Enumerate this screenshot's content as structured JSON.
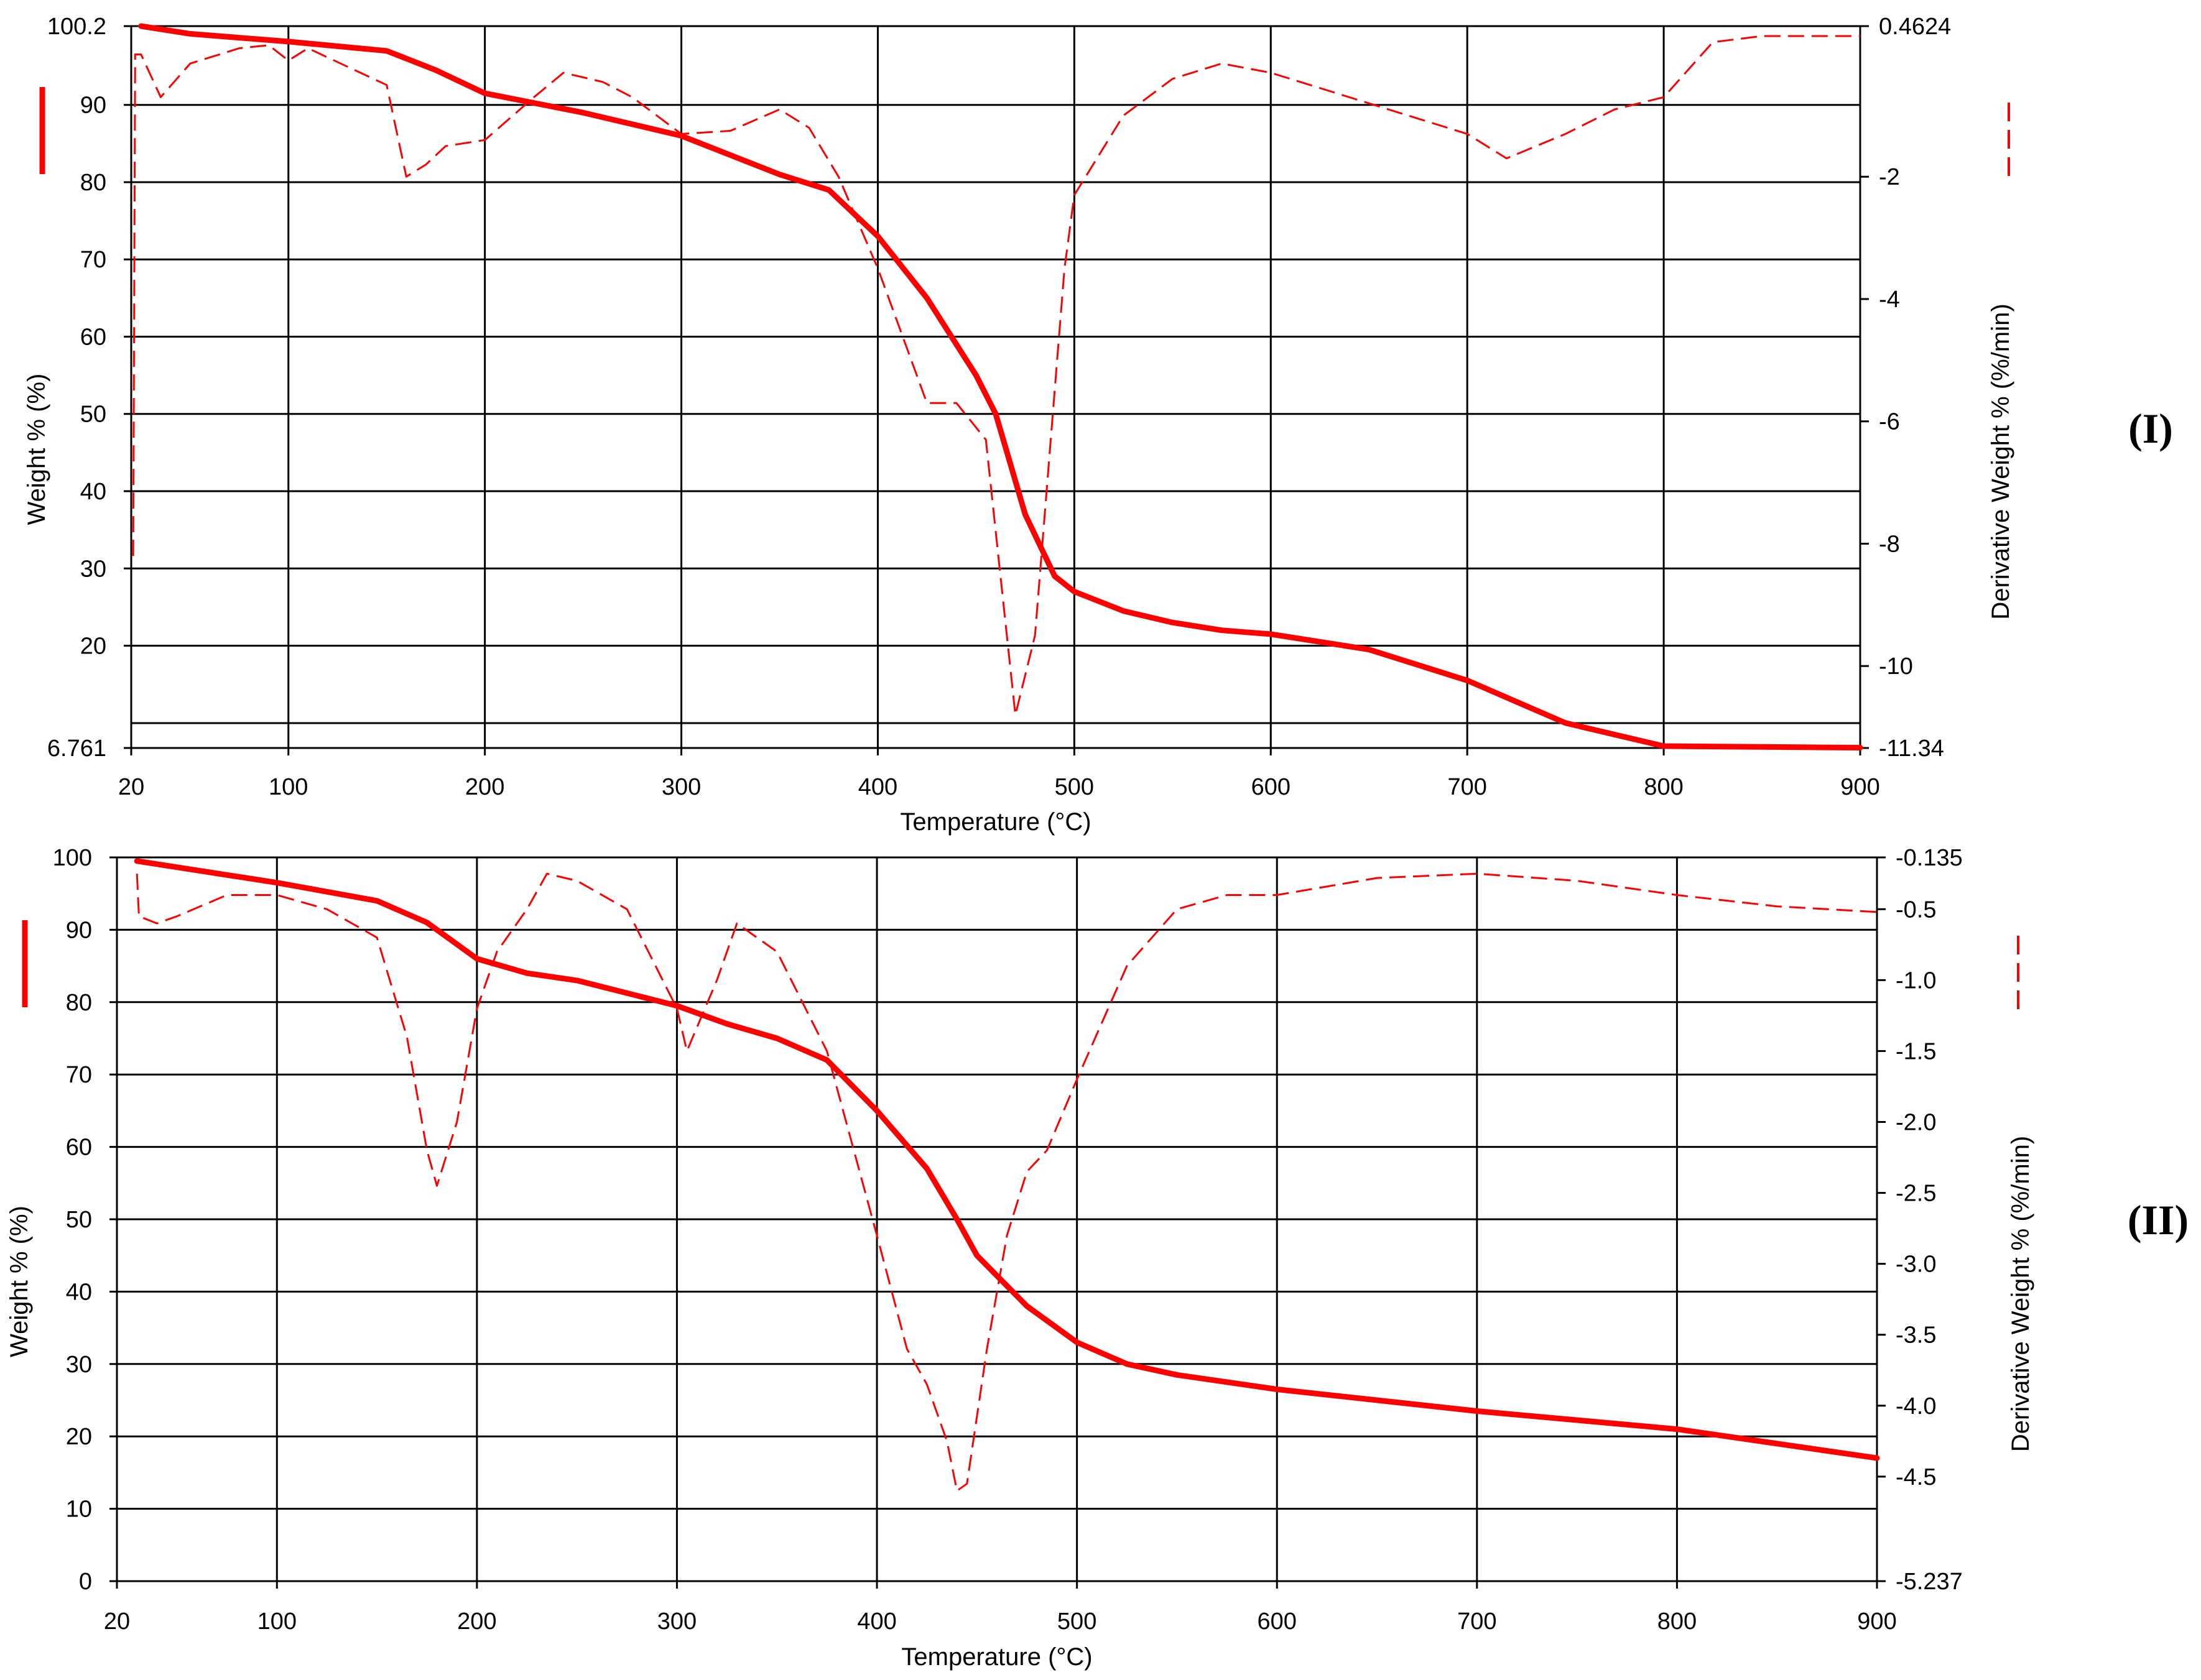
{
  "colors": {
    "series": "#ff0000",
    "grid": "#000000",
    "background": "#ffffff"
  },
  "chart_data": [
    {
      "id": "I",
      "type": "line",
      "panel_label": "I",
      "xlabel": "Temperature (°C)",
      "ylabel": "Weight % (%)",
      "y2label": "Derivative Weight % (%/min)",
      "xlim": [
        20,
        900
      ],
      "ylim": [
        6.761,
        100.2
      ],
      "y2lim": [
        -11.34,
        0.4624
      ],
      "x_ticks": [
        "20",
        "100",
        "200",
        "300",
        "400",
        "500",
        "600",
        "700",
        "800",
        "900"
      ],
      "y_ticks": [
        "6.761",
        "20",
        "30",
        "40",
        "50",
        "60",
        "70",
        "80",
        "90",
        "100.2"
      ],
      "y2_ticks": [
        "-11.34",
        "-10",
        "-8",
        "-6",
        "-4",
        "-2",
        "0.4624"
      ],
      "series": [
        {
          "name": "Weight %",
          "axis": "left",
          "style": "solid",
          "points": [
            [
              25,
              100.2
            ],
            [
              50,
              99.2
            ],
            [
              100,
              98.2
            ],
            [
              150,
              97.0
            ],
            [
              175,
              94.5
            ],
            [
              200,
              91.5
            ],
            [
              250,
              89.0
            ],
            [
              300,
              86.0
            ],
            [
              350,
              81.0
            ],
            [
              375,
              79.0
            ],
            [
              400,
              73.0
            ],
            [
              425,
              65.0
            ],
            [
              450,
              55.0
            ],
            [
              460,
              50.0
            ],
            [
              475,
              37.0
            ],
            [
              490,
              29.0
            ],
            [
              500,
              27.0
            ],
            [
              525,
              24.5
            ],
            [
              550,
              23.0
            ],
            [
              575,
              22.0
            ],
            [
              600,
              21.5
            ],
            [
              650,
              19.5
            ],
            [
              700,
              15.5
            ],
            [
              750,
              10.0
            ],
            [
              800,
              7.0
            ],
            [
              850,
              6.9
            ],
            [
              900,
              6.8
            ]
          ]
        },
        {
          "name": "Derivative Weight %",
          "axis": "right",
          "style": "dashed",
          "points": [
            [
              21,
              -8.2
            ],
            [
              22,
              0.0
            ],
            [
              25,
              0.0
            ],
            [
              35,
              -0.7
            ],
            [
              50,
              -0.15
            ],
            [
              75,
              0.1
            ],
            [
              90,
              0.15
            ],
            [
              100,
              -0.1
            ],
            [
              110,
              0.1
            ],
            [
              130,
              -0.2
            ],
            [
              150,
              -0.5
            ],
            [
              160,
              -2.0
            ],
            [
              170,
              -1.8
            ],
            [
              180,
              -1.5
            ],
            [
              200,
              -1.4
            ],
            [
              225,
              -0.7
            ],
            [
              240,
              -0.3
            ],
            [
              260,
              -0.45
            ],
            [
              275,
              -0.7
            ],
            [
              300,
              -1.3
            ],
            [
              325,
              -1.25
            ],
            [
              350,
              -0.9
            ],
            [
              365,
              -1.2
            ],
            [
              380,
              -2.0
            ],
            [
              400,
              -3.5
            ],
            [
              425,
              -5.7
            ],
            [
              440,
              -5.7
            ],
            [
              455,
              -6.3
            ],
            [
              470,
              -10.8
            ],
            [
              480,
              -9.5
            ],
            [
              495,
              -3.5
            ],
            [
              500,
              -2.3
            ],
            [
              525,
              -1.0
            ],
            [
              550,
              -0.4
            ],
            [
              575,
              -0.15
            ],
            [
              600,
              -0.3
            ],
            [
              650,
              -0.8
            ],
            [
              700,
              -1.3
            ],
            [
              720,
              -1.7
            ],
            [
              750,
              -1.3
            ],
            [
              775,
              -0.9
            ],
            [
              800,
              -0.7
            ],
            [
              825,
              0.2
            ],
            [
              850,
              0.3
            ],
            [
              900,
              0.3
            ]
          ]
        }
      ]
    },
    {
      "id": "II",
      "type": "line",
      "panel_label": "II",
      "xlabel": "Temperature (°C)",
      "ylabel": "Weight % (%)",
      "y2label": "Derivative Weight % (%/min)",
      "xlim": [
        20,
        900
      ],
      "ylim": [
        0,
        100
      ],
      "y2lim": [
        -5.237,
        -0.135
      ],
      "x_ticks": [
        "20",
        "100",
        "200",
        "300",
        "400",
        "500",
        "600",
        "700",
        "800",
        "900"
      ],
      "y_ticks": [
        "0",
        "10",
        "20",
        "30",
        "40",
        "50",
        "60",
        "70",
        "80",
        "90",
        "100"
      ],
      "y2_ticks": [
        "-5.237",
        "-4.5",
        "-4.0",
        "-3.5",
        "-3.0",
        "-2.5",
        "-2.0",
        "-1.5",
        "-1.0",
        "-0.5",
        "-0.135"
      ],
      "series": [
        {
          "name": "Weight %",
          "axis": "left",
          "style": "solid",
          "points": [
            [
              30,
              99.5
            ],
            [
              100,
              96.5
            ],
            [
              150,
              94.0
            ],
            [
              175,
              91.0
            ],
            [
              200,
              86.0
            ],
            [
              225,
              84.0
            ],
            [
              250,
              83.0
            ],
            [
              300,
              79.5
            ],
            [
              325,
              77.0
            ],
            [
              350,
              75.0
            ],
            [
              375,
              72.0
            ],
            [
              400,
              65.0
            ],
            [
              425,
              57.0
            ],
            [
              440,
              50.0
            ],
            [
              450,
              45.0
            ],
            [
              475,
              38.0
            ],
            [
              500,
              33.0
            ],
            [
              525,
              30.0
            ],
            [
              550,
              28.5
            ],
            [
              600,
              26.5
            ],
            [
              700,
              23.5
            ],
            [
              800,
              21.0
            ],
            [
              900,
              17.0
            ]
          ]
        },
        {
          "name": "Derivative Weight %",
          "axis": "right",
          "style": "dashed",
          "points": [
            [
              30,
              -0.25
            ],
            [
              31,
              -0.55
            ],
            [
              40,
              -0.6
            ],
            [
              50,
              -0.55
            ],
            [
              75,
              -0.4
            ],
            [
              100,
              -0.4
            ],
            [
              125,
              -0.5
            ],
            [
              150,
              -0.7
            ],
            [
              165,
              -1.4
            ],
            [
              175,
              -2.2
            ],
            [
              180,
              -2.45
            ],
            [
              190,
              -2.0
            ],
            [
              200,
              -1.2
            ],
            [
              210,
              -0.8
            ],
            [
              225,
              -0.5
            ],
            [
              235,
              -0.25
            ],
            [
              250,
              -0.3
            ],
            [
              275,
              -0.5
            ],
            [
              300,
              -1.2
            ],
            [
              305,
              -1.5
            ],
            [
              320,
              -1.0
            ],
            [
              330,
              -0.6
            ],
            [
              350,
              -0.8
            ],
            [
              375,
              -1.5
            ],
            [
              400,
              -2.8
            ],
            [
              415,
              -3.6
            ],
            [
              425,
              -3.85
            ],
            [
              435,
              -4.25
            ],
            [
              440,
              -4.6
            ],
            [
              445,
              -4.55
            ],
            [
              455,
              -3.6
            ],
            [
              465,
              -2.8
            ],
            [
              475,
              -2.35
            ],
            [
              485,
              -2.2
            ],
            [
              500,
              -1.7
            ],
            [
              525,
              -0.9
            ],
            [
              550,
              -0.5
            ],
            [
              575,
              -0.4
            ],
            [
              600,
              -0.4
            ],
            [
              650,
              -0.28
            ],
            [
              700,
              -0.25
            ],
            [
              750,
              -0.3
            ],
            [
              800,
              -0.4
            ],
            [
              850,
              -0.48
            ],
            [
              900,
              -0.52
            ]
          ]
        }
      ]
    }
  ]
}
